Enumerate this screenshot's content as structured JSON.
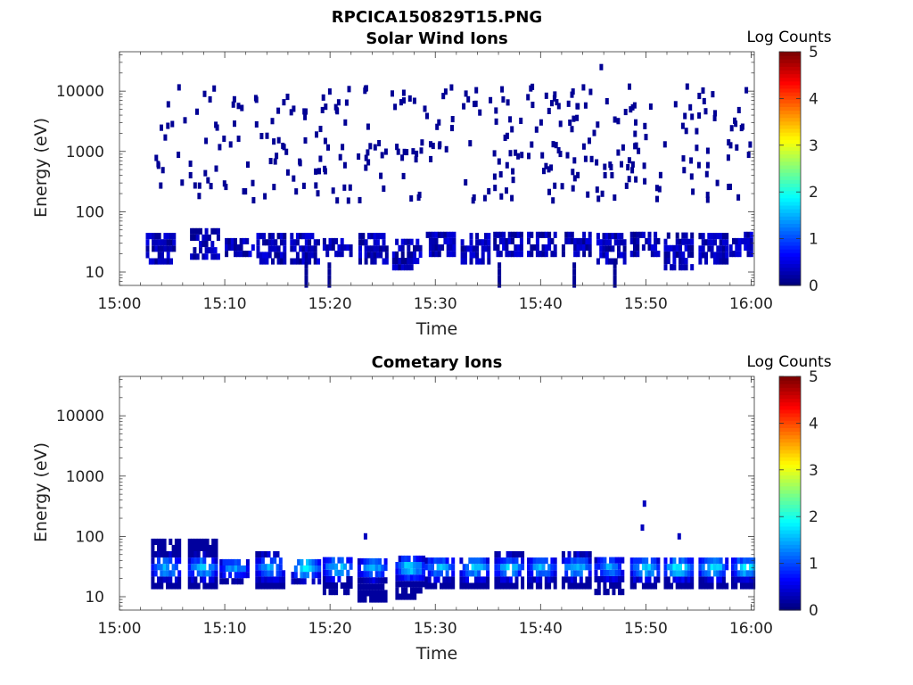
{
  "figure_title": "RPCICA150829T15.PNG",
  "chart_data": [
    {
      "type": "heatmap",
      "title": "Solar Wind Ions",
      "xlabel": "Time",
      "ylabel": "Energy (eV)",
      "x_ticks": [
        "15:00",
        "15:10",
        "15:20",
        "15:30",
        "15:40",
        "15:50",
        "16:00"
      ],
      "xlim_minutes": [
        0,
        60.3
      ],
      "y_scale": "log",
      "y_ticks": [
        10,
        100,
        1000,
        10000
      ],
      "y_tick_labels": [
        "10",
        "100",
        "1000",
        "10000"
      ],
      "ylim": [
        6,
        45000
      ],
      "colorbar": {
        "label": "Log Counts",
        "range": [
          0,
          5
        ],
        "ticks": [
          "0",
          "1",
          "2",
          "3",
          "4",
          "5"
        ]
      },
      "low_energy_bursts": [
        {
          "t": 3.8,
          "e_low": 15,
          "e_high": 40,
          "level": 0.3
        },
        {
          "t": 8.0,
          "e_low": 18,
          "e_high": 60,
          "level": 0.3
        },
        {
          "t": 11.3,
          "e_low": 20,
          "e_high": 40,
          "level": 0.3
        },
        {
          "t": 14.3,
          "e_low": 15,
          "e_high": 40,
          "level": 0.3
        },
        {
          "t": 17.5,
          "e_low": 15,
          "e_high": 40,
          "level": 0.3
        },
        {
          "t": 20.6,
          "e_low": 20,
          "e_high": 40,
          "level": 0.3
        },
        {
          "t": 24.0,
          "e_low": 15,
          "e_high": 40,
          "level": 0.3
        },
        {
          "t": 27.2,
          "e_low": 12,
          "e_high": 40,
          "level": 0.3
        },
        {
          "t": 30.4,
          "e_low": 20,
          "e_high": 45,
          "level": 0.3
        },
        {
          "t": 33.7,
          "e_low": 15,
          "e_high": 45,
          "level": 0.3
        },
        {
          "t": 36.8,
          "e_low": 20,
          "e_high": 45,
          "level": 0.3
        },
        {
          "t": 40.0,
          "e_low": 20,
          "e_high": 50,
          "level": 0.3
        },
        {
          "t": 43.3,
          "e_low": 20,
          "e_high": 45,
          "level": 0.3
        },
        {
          "t": 46.6,
          "e_low": 15,
          "e_high": 40,
          "level": 0.3
        },
        {
          "t": 49.8,
          "e_low": 20,
          "e_high": 45,
          "level": 0.3
        },
        {
          "t": 53.0,
          "e_low": 12,
          "e_high": 45,
          "level": 0.3
        },
        {
          "t": 56.3,
          "e_low": 15,
          "e_high": 50,
          "level": 0.3
        },
        {
          "t": 59.2,
          "e_low": 20,
          "e_high": 50,
          "level": 0.3
        }
      ],
      "scatter_energy_range": [
        150,
        12000
      ],
      "approx_level": 0.1
    },
    {
      "type": "heatmap",
      "title": "Cometary Ions",
      "xlabel": "Time",
      "ylabel": "Energy (eV)",
      "x_ticks": [
        "15:00",
        "15:10",
        "15:20",
        "15:30",
        "15:40",
        "15:50",
        "16:00"
      ],
      "xlim_minutes": [
        0,
        60.3
      ],
      "y_scale": "log",
      "y_ticks": [
        10,
        100,
        1000,
        10000
      ],
      "y_tick_labels": [
        "10",
        "100",
        "1000",
        "10000"
      ],
      "ylim": [
        6,
        45000
      ],
      "colorbar": {
        "label": "Log Counts",
        "range": [
          0,
          5
        ],
        "ticks": [
          "0",
          "1",
          "2",
          "3",
          "4",
          "5"
        ]
      },
      "bursts": [
        {
          "t": 4.3,
          "e_low": 15,
          "e_high": 90,
          "peak": 1.7
        },
        {
          "t": 7.8,
          "e_low": 15,
          "e_high": 100,
          "peak": 1.8
        },
        {
          "t": 10.8,
          "e_low": 18,
          "e_high": 45,
          "peak": 1.6
        },
        {
          "t": 14.2,
          "e_low": 15,
          "e_high": 60,
          "peak": 1.7
        },
        {
          "t": 17.6,
          "e_low": 18,
          "e_high": 45,
          "peak": 2.0
        },
        {
          "t": 20.6,
          "e_low": 12,
          "e_high": 45,
          "peak": 1.8
        },
        {
          "t": 23.9,
          "e_low": 9,
          "e_high": 45,
          "peak": 1.7
        },
        {
          "t": 27.5,
          "e_low": 10,
          "e_high": 45,
          "peak": 1.9
        },
        {
          "t": 30.3,
          "e_low": 15,
          "e_high": 45,
          "peak": 1.7
        },
        {
          "t": 33.6,
          "e_low": 15,
          "e_high": 45,
          "peak": 1.8
        },
        {
          "t": 36.9,
          "e_low": 15,
          "e_high": 55,
          "peak": 1.8
        },
        {
          "t": 40.0,
          "e_low": 15,
          "e_high": 50,
          "peak": 1.7
        },
        {
          "t": 43.3,
          "e_low": 15,
          "e_high": 55,
          "peak": 1.8
        },
        {
          "t": 46.4,
          "e_low": 12,
          "e_high": 45,
          "peak": 1.6
        },
        {
          "t": 49.8,
          "e_low": 15,
          "e_high": 50,
          "peak": 1.9
        },
        {
          "t": 53.0,
          "e_low": 15,
          "e_high": 45,
          "peak": 2.0
        },
        {
          "t": 56.3,
          "e_low": 15,
          "e_high": 45,
          "peak": 1.9
        },
        {
          "t": 59.4,
          "e_low": 15,
          "e_high": 45,
          "peak": 1.9
        }
      ],
      "isolated_points": [
        {
          "t": 23.2,
          "e": 100
        },
        {
          "t": 49.7,
          "e": 350
        },
        {
          "t": 49.5,
          "e": 140
        },
        {
          "t": 53.0,
          "e": 100
        }
      ]
    }
  ]
}
